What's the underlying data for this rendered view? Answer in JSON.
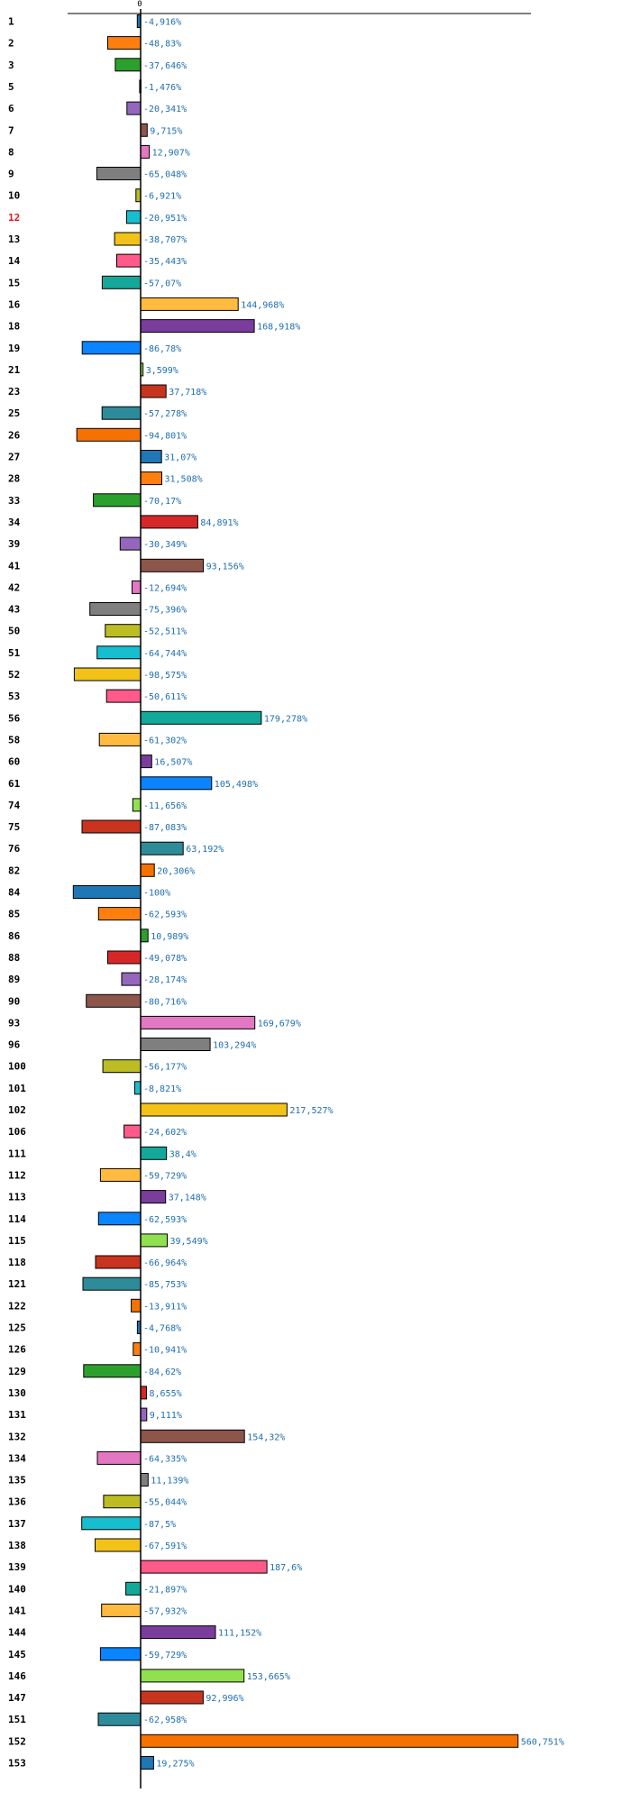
{
  "chart_data": {
    "type": "bar",
    "orientation": "horizontal",
    "title": "",
    "xlabel": "",
    "ylabel": "",
    "unit_suffix": "%",
    "axis_zero_label": "0",
    "xlim": [
      -100,
      560.751
    ],
    "grid": false,
    "highlight_color": "#e8141a",
    "highlighted_categories": [
      "12"
    ],
    "categories": [
      "1",
      "2",
      "3",
      "5",
      "6",
      "7",
      "8",
      "9",
      "10",
      "12",
      "13",
      "14",
      "15",
      "16",
      "18",
      "19",
      "21",
      "23",
      "25",
      "26",
      "27",
      "28",
      "33",
      "34",
      "39",
      "41",
      "42",
      "43",
      "50",
      "51",
      "52",
      "53",
      "56",
      "58",
      "60",
      "61",
      "74",
      "75",
      "76",
      "82",
      "84",
      "85",
      "86",
      "88",
      "89",
      "90",
      "93",
      "96",
      "100",
      "101",
      "102",
      "106",
      "111",
      "112",
      "113",
      "114",
      "115",
      "118",
      "121",
      "122",
      "125",
      "126",
      "129",
      "130",
      "131",
      "132",
      "134",
      "135",
      "136",
      "137",
      "138",
      "139",
      "140",
      "141",
      "144",
      "145",
      "146",
      "147",
      "151",
      "152",
      "153"
    ],
    "values": [
      -4.916,
      -48.83,
      -37.646,
      -1.476,
      -20.341,
      9.715,
      12.907,
      -65.048,
      -6.921,
      -20.951,
      -38.707,
      -35.443,
      -57.07,
      144.968,
      168.918,
      -86.78,
      3.599,
      37.718,
      -57.278,
      -94.801,
      31.07,
      31.508,
      -70.17,
      84.891,
      -30.349,
      93.156,
      -12.694,
      -75.396,
      -52.511,
      -64.744,
      -98.575,
      -50.611,
      179.278,
      -61.302,
      16.507,
      105.498,
      -11.656,
      -87.083,
      63.192,
      20.306,
      -100,
      -62.593,
      10.989,
      -49.078,
      -28.174,
      -80.716,
      169.679,
      103.294,
      -56.177,
      -8.821,
      217.527,
      -24.602,
      38.4,
      -59.729,
      37.148,
      -62.593,
      39.549,
      -66.964,
      -85.753,
      -13.911,
      -4.768,
      -10.941,
      -84.62,
      8.655,
      9.111,
      154.32,
      -64.335,
      11.139,
      -55.044,
      -87.5,
      -67.591,
      187.6,
      -21.897,
      -57.932,
      111.152,
      -59.729,
      153.665,
      92.996,
      -62.958,
      560.751,
      19.275
    ],
    "value_labels": [
      "-4,916%",
      "-48,83%",
      "-37,646%",
      "-1,476%",
      "-20,341%",
      "9,715%",
      "12,907%",
      "-65,048%",
      "-6,921%",
      "-20,951%",
      "-38,707%",
      "-35,443%",
      "-57,07%",
      "144,968%",
      "168,918%",
      "-86,78%",
      "3,599%",
      "37,718%",
      "-57,278%",
      "-94,801%",
      "31,07%",
      "31,508%",
      "-70,17%",
      "84,891%",
      "-30,349%",
      "93,156%",
      "-12,694%",
      "-75,396%",
      "-52,511%",
      "-64,744%",
      "-98,575%",
      "-50,611%",
      "179,278%",
      "-61,302%",
      "16,507%",
      "105,498%",
      "-11,656%",
      "-87,083%",
      "63,192%",
      "20,306%",
      "-100%",
      "-62,593%",
      "10,989%",
      "-49,078%",
      "-28,174%",
      "-80,716%",
      "169,679%",
      "103,294%",
      "-56,177%",
      "-8,821%",
      "217,527%",
      "-24,602%",
      "38,4%",
      "-59,729%",
      "37,148%",
      "-62,593%",
      "39,549%",
      "-66,964%",
      "-85,753%",
      "-13,911%",
      "-4,768%",
      "-10,941%",
      "-84,62%",
      "8,655%",
      "9,111%",
      "154,32%",
      "-64,335%",
      "11,139%",
      "-55,044%",
      "-87,5%",
      "-67,591%",
      "187,6%",
      "-21,897%",
      "-57,932%",
      "111,152%",
      "-59,729%",
      "153,665%",
      "92,996%",
      "-62,958%",
      "560,751%",
      "19,275%"
    ],
    "palette": [
      "#1f77b4",
      "#ff7f0e",
      "#2ca02c",
      "#d62728",
      "#9467bd",
      "#8c564b",
      "#e377c2",
      "#7f7f7f",
      "#bcbd22",
      "#17becf",
      "#f2c218",
      "#ff5a8a",
      "#14a89a",
      "#ffbb40",
      "#7a3d9c",
      "#0a84ff",
      "#90e050",
      "#c8341e",
      "#2e8b9a",
      "#f57200"
    ]
  }
}
